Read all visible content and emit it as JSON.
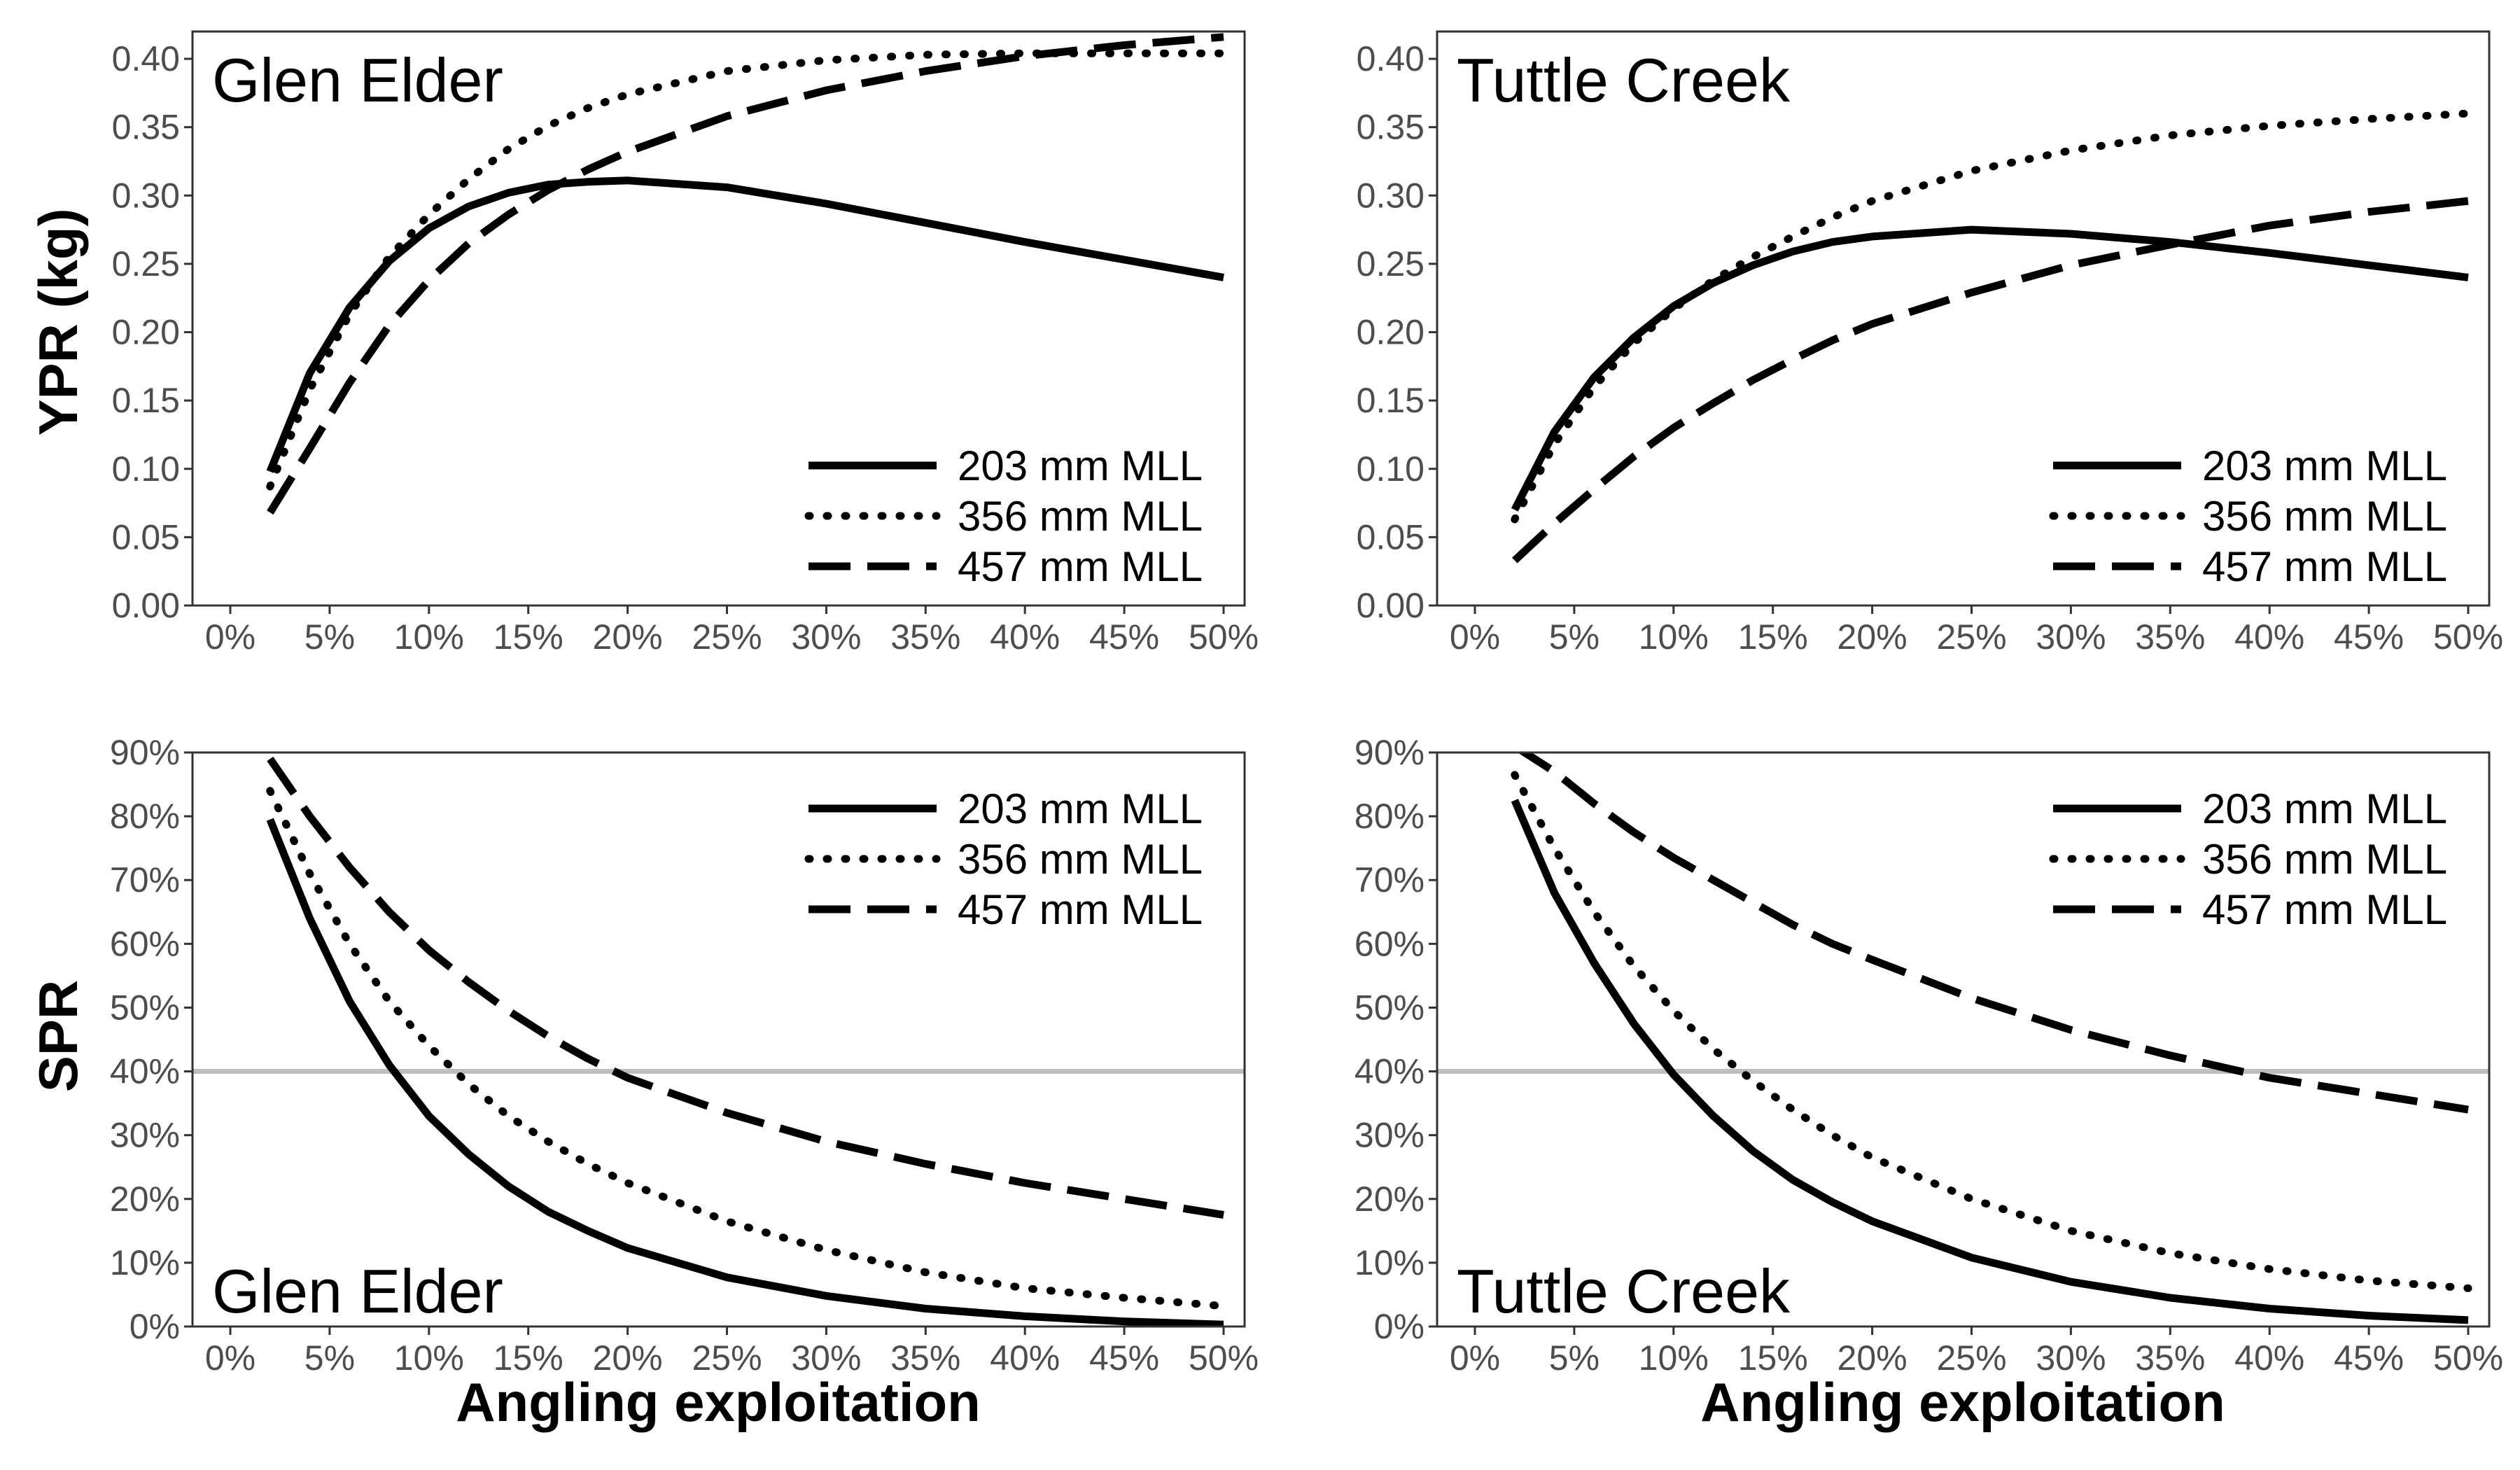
{
  "figure": {
    "ylabel_top": "YPR (kg)",
    "ylabel_bottom": "SPR",
    "xlabel": "Angling exploitation"
  },
  "chart_data": [
    {
      "type": "line",
      "title": "Glen Elder",
      "xlabel": "",
      "ylabel": "YPR (kg)",
      "xlim": [
        0,
        50
      ],
      "ylim": [
        0,
        0.42
      ],
      "x_ticks": [
        "0%",
        "5%",
        "10%",
        "15%",
        "20%",
        "25%",
        "30%",
        "35%",
        "40%",
        "45%",
        "50%"
      ],
      "y_ticks": [
        "0.00",
        "0.05",
        "0.10",
        "0.15",
        "0.20",
        "0.25",
        "0.30",
        "0.35",
        "0.40"
      ],
      "legend_position": "bottom-right",
      "x": [
        2,
        4,
        6,
        8,
        10,
        12,
        14,
        16,
        18,
        20,
        25,
        30,
        35,
        40,
        45,
        50
      ],
      "series": [
        {
          "name": "203 mm MLL",
          "style": "solid",
          "values": [
            0.098,
            0.17,
            0.218,
            0.252,
            0.276,
            0.292,
            0.302,
            0.308,
            0.31,
            0.311,
            0.306,
            0.294,
            0.28,
            0.266,
            0.253,
            0.24
          ]
        },
        {
          "name": "356 mm MLL",
          "style": "dotted",
          "values": [
            0.087,
            0.158,
            0.213,
            0.255,
            0.286,
            0.312,
            0.334,
            0.351,
            0.364,
            0.374,
            0.391,
            0.399,
            0.403,
            0.404,
            0.404,
            0.404
          ]
        },
        {
          "name": "457 mm MLL",
          "style": "dashed",
          "values": [
            0.068,
            0.115,
            0.163,
            0.205,
            0.238,
            0.265,
            0.286,
            0.304,
            0.319,
            0.332,
            0.358,
            0.377,
            0.391,
            0.402,
            0.41,
            0.416
          ]
        }
      ]
    },
    {
      "type": "line",
      "title": "Tuttle Creek",
      "xlabel": "",
      "ylabel": "",
      "xlim": [
        0,
        50
      ],
      "ylim": [
        0,
        0.42
      ],
      "x_ticks": [
        "0%",
        "5%",
        "10%",
        "15%",
        "20%",
        "25%",
        "30%",
        "35%",
        "40%",
        "45%",
        "50%"
      ],
      "y_ticks": [
        "0.00",
        "0.05",
        "0.10",
        "0.15",
        "0.20",
        "0.25",
        "0.30",
        "0.35",
        "0.40"
      ],
      "legend_position": "bottom-right",
      "x": [
        2,
        4,
        6,
        8,
        10,
        12,
        14,
        16,
        18,
        20,
        25,
        30,
        35,
        40,
        45,
        50
      ],
      "series": [
        {
          "name": "203 mm MLL",
          "style": "solid",
          "values": [
            0.07,
            0.127,
            0.167,
            0.196,
            0.219,
            0.236,
            0.249,
            0.259,
            0.266,
            0.27,
            0.275,
            0.272,
            0.266,
            0.258,
            0.249,
            0.24
          ]
        },
        {
          "name": "356 mm MLL",
          "style": "dotted",
          "values": [
            0.063,
            0.118,
            0.16,
            0.192,
            0.217,
            0.238,
            0.255,
            0.27,
            0.284,
            0.296,
            0.318,
            0.333,
            0.344,
            0.351,
            0.356,
            0.36
          ]
        },
        {
          "name": "457 mm MLL",
          "style": "dashed",
          "values": [
            0.033,
            0.06,
            0.085,
            0.109,
            0.13,
            0.148,
            0.165,
            0.18,
            0.194,
            0.206,
            0.229,
            0.249,
            0.264,
            0.278,
            0.288,
            0.296
          ]
        }
      ]
    },
    {
      "type": "line",
      "title": "Glen Elder",
      "xlabel": "Angling exploitation",
      "ylabel": "SPR",
      "xlim": [
        0,
        50
      ],
      "ylim": [
        0,
        90
      ],
      "x_ticks": [
        "0%",
        "5%",
        "10%",
        "15%",
        "20%",
        "25%",
        "30%",
        "35%",
        "40%",
        "45%",
        "50%"
      ],
      "y_ticks": [
        "0%",
        "10%",
        "20%",
        "30%",
        "40%",
        "50%",
        "60%",
        "70%",
        "80%",
        "90%"
      ],
      "reference_line_y": 40,
      "legend_position": "top-right",
      "x": [
        2,
        4,
        6,
        8,
        10,
        12,
        14,
        16,
        18,
        20,
        25,
        30,
        35,
        40,
        45,
        50
      ],
      "series": [
        {
          "name": "203 mm MLL",
          "style": "solid",
          "values": [
            79.5,
            64,
            51,
            41,
            33,
            27,
            22,
            18,
            15,
            12.3,
            7.7,
            4.8,
            2.8,
            1.6,
            0.8,
            0.3
          ]
        },
        {
          "name": "356 mm MLL",
          "style": "dotted",
          "values": [
            84,
            71,
            60,
            51,
            44,
            38,
            33,
            29,
            25.5,
            22.5,
            16.5,
            12,
            8.5,
            6,
            4.5,
            3.2
          ]
        },
        {
          "name": "457 mm MLL",
          "style": "dashed",
          "values": [
            89,
            80,
            72,
            65,
            59,
            54,
            49.5,
            45.5,
            42,
            39,
            33.5,
            29,
            25.5,
            22.5,
            20,
            17.5
          ]
        }
      ]
    },
    {
      "type": "line",
      "title": "Tuttle Creek",
      "xlabel": "Angling exploitation",
      "ylabel": "",
      "xlim": [
        0,
        50
      ],
      "ylim": [
        0,
        90
      ],
      "x_ticks": [
        "0%",
        "5%",
        "10%",
        "15%",
        "20%",
        "25%",
        "30%",
        "35%",
        "40%",
        "45%",
        "50%"
      ],
      "y_ticks": [
        "0%",
        "10%",
        "20%",
        "30%",
        "40%",
        "50%",
        "60%",
        "70%",
        "80%",
        "90%"
      ],
      "reference_line_y": 40,
      "legend_position": "top-right",
      "x": [
        2,
        4,
        6,
        8,
        10,
        12,
        14,
        16,
        18,
        20,
        25,
        30,
        35,
        40,
        45,
        50
      ],
      "series": [
        {
          "name": "203 mm MLL",
          "style": "solid",
          "values": [
            82.5,
            68,
            57,
            47.5,
            39.5,
            33,
            27.5,
            23,
            19.5,
            16.5,
            10.8,
            7,
            4.5,
            2.8,
            1.7,
            1
          ]
        },
        {
          "name": "356 mm MLL",
          "style": "dotted",
          "values": [
            86.5,
            75,
            65,
            56.5,
            49.5,
            43.5,
            38.5,
            34,
            30,
            26.5,
            20,
            15,
            11.5,
            9,
            7.2,
            6
          ]
        },
        {
          "name": "457 mm MLL",
          "style": "dashed",
          "values": [
            91,
            87,
            82,
            77.5,
            73.5,
            70,
            66.5,
            63,
            60,
            57.5,
            51.5,
            46.5,
            42.5,
            39,
            36.5,
            34
          ]
        }
      ]
    }
  ]
}
